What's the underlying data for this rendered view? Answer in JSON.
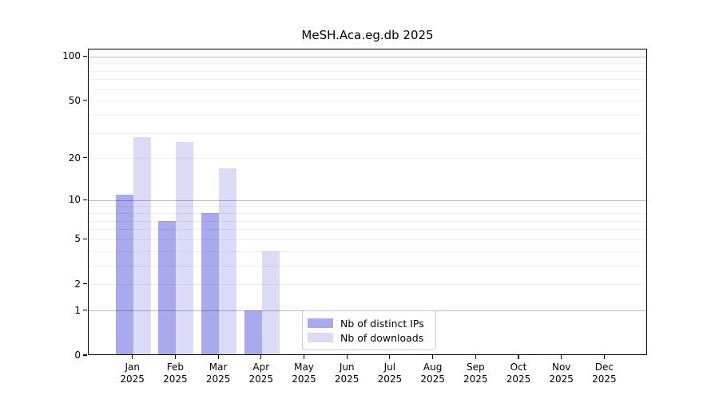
{
  "title": "MeSH.Aca.eg.db 2025",
  "chart_data": {
    "type": "bar",
    "title": "MeSH.Aca.eg.db 2025",
    "categories": [
      "Jan",
      "Feb",
      "Mar",
      "Apr",
      "May",
      "Jun",
      "Jul",
      "Aug",
      "Sep",
      "Oct",
      "Nov",
      "Dec"
    ],
    "x_tick_second_line": "2025",
    "series": [
      {
        "name": "Nb of distinct IPs",
        "color": "#a9a9ed",
        "values": [
          11,
          7,
          8,
          1,
          0,
          0,
          0,
          0,
          0,
          0,
          0,
          0
        ]
      },
      {
        "name": "Nb of downloads",
        "color": "#dbdbf7",
        "values": [
          28,
          26,
          17,
          4,
          0,
          0,
          0,
          0,
          0,
          0,
          0,
          0
        ]
      }
    ],
    "y_axis": {
      "scale": "log1p",
      "ticks": [
        0,
        1,
        2,
        5,
        10,
        20,
        50,
        100
      ],
      "major_gridlines": [
        1,
        10,
        100
      ],
      "minor_gridlines": [
        2,
        3,
        4,
        5,
        6,
        7,
        8,
        9,
        20,
        30,
        40,
        50,
        60,
        70,
        80,
        90
      ],
      "ylim": [
        0,
        112
      ]
    },
    "legend": {
      "position": "inside-bottom-center",
      "entries": [
        "Nb of distinct IPs",
        "Nb of downloads"
      ]
    },
    "grid": "on"
  }
}
